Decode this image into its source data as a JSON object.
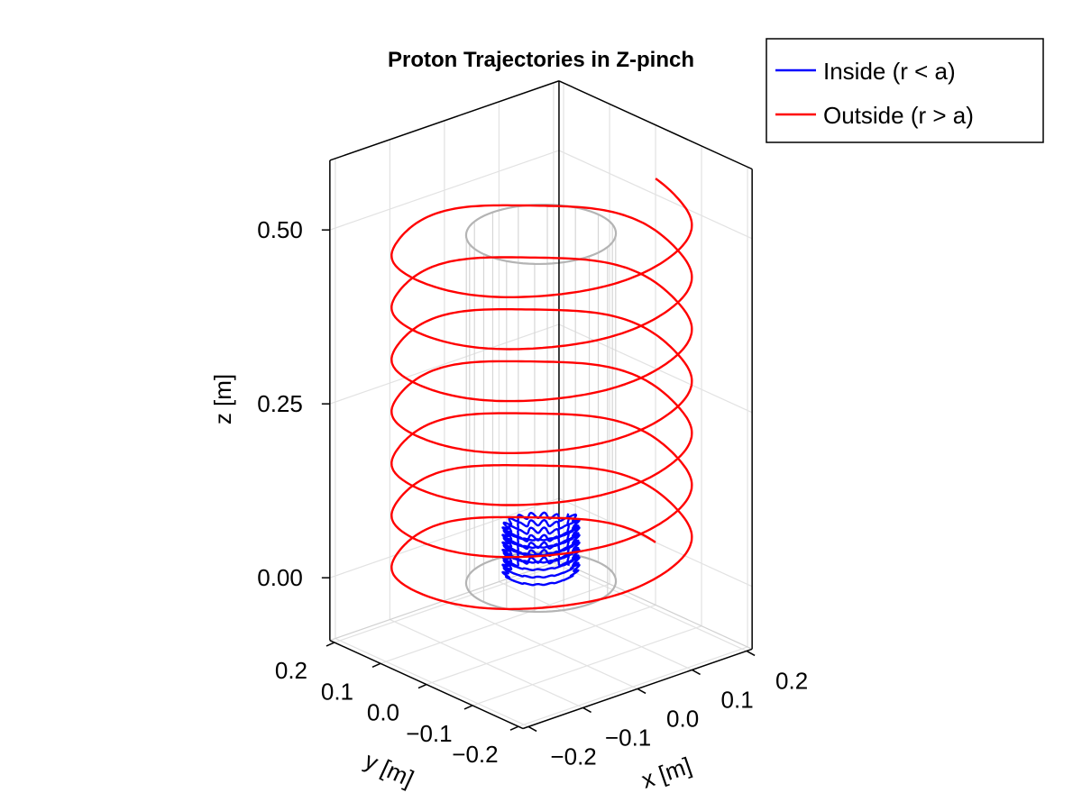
{
  "chart_data": {
    "type": "line3d",
    "title": "Proton Trajectories in Z-pinch",
    "xlabel": "x [m]",
    "ylabel": "y [m]",
    "zlabel": "z [m]",
    "xlim": [
      -0.21,
      0.21
    ],
    "ylim": [
      -0.21,
      0.21
    ],
    "zlim": [
      -0.09,
      0.6
    ],
    "xticks": [
      -0.2,
      -0.1,
      0.0,
      0.1,
      0.2
    ],
    "xtick_labels": [
      "−0.2",
      "−0.1",
      "0.0",
      "0.1",
      "0.2"
    ],
    "yticks": [
      -0.2,
      -0.1,
      0.0,
      0.1,
      0.2
    ],
    "ytick_labels": [
      "−0.2",
      "−0.1",
      "0.0",
      "0.1",
      "0.2"
    ],
    "zticks": [
      0.0,
      0.25,
      0.5
    ],
    "ztick_labels": [
      "0.00",
      "0.25",
      "0.50"
    ],
    "grid": true,
    "legend": {
      "placement": "top-right",
      "entries": [
        {
          "label": "Inside (r < a)",
          "color": "#0000ff"
        },
        {
          "label": "Outside (r > a)",
          "color": "#ff0000"
        }
      ]
    },
    "series": [
      {
        "name": "Inside (r < a)",
        "color": "#0000ff",
        "kind": "helix",
        "radius": 0.05,
        "z_start": 0.01,
        "z_end": 0.085,
        "turns": 7,
        "wiggle_amplitude": 0.004,
        "wiggles_per_turn": 18
      },
      {
        "name": "Outside (r > a)",
        "color": "#ff0000",
        "kind": "helix",
        "radius": 0.21,
        "z_start": 0.0,
        "z_end": 0.523,
        "turns": 7,
        "wiggle_amplitude": 0.003,
        "wiggles_per_turn": 5
      }
    ],
    "reference_cylinder": {
      "radius": 0.105,
      "z_bottom": 0.0,
      "z_top": 0.5,
      "color": "#b4b4b4"
    }
  }
}
